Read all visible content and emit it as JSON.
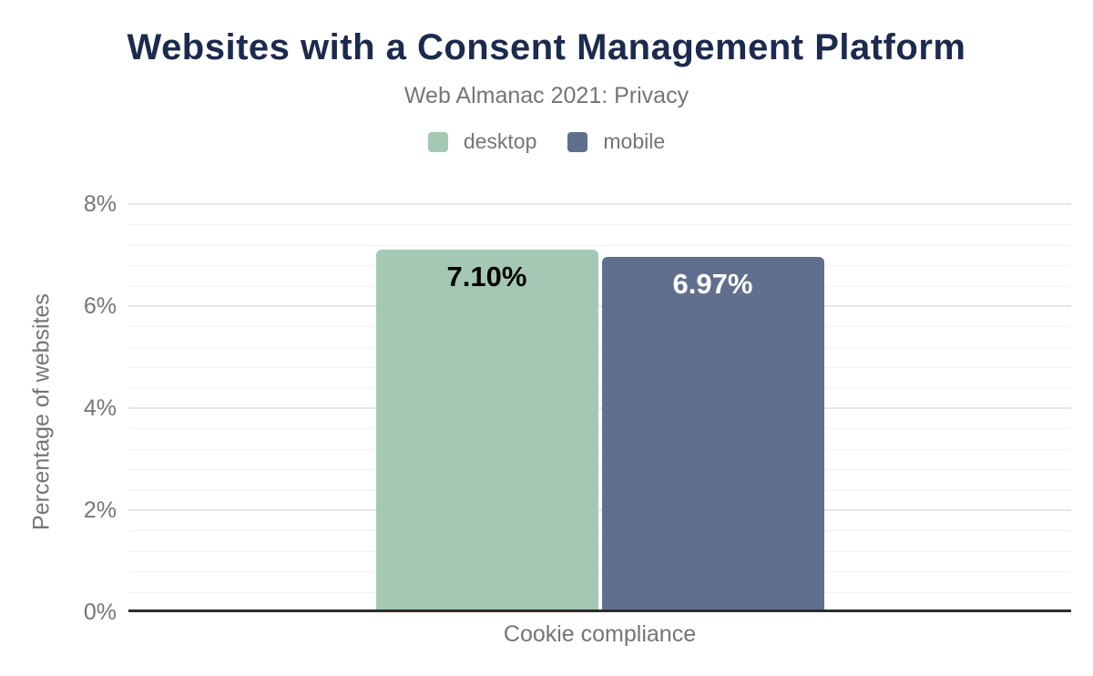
{
  "header": {
    "title": "Websites with a Consent Management Platform",
    "subtitle": "Web Almanac 2021: Privacy"
  },
  "chart_data": {
    "type": "bar",
    "title": "Websites with a Consent Management Platform",
    "subtitle": "Web Almanac 2021: Privacy",
    "categories": [
      "Cookie compliance"
    ],
    "series": [
      {
        "name": "desktop",
        "values": [
          7.1
        ],
        "data_labels": [
          "7.10%"
        ],
        "color": "#a5c8b5",
        "label_color": "#000000"
      },
      {
        "name": "mobile",
        "values": [
          6.97
        ],
        "data_labels": [
          "6.97%"
        ],
        "color": "#606f8e",
        "label_color": "#ffffff"
      }
    ],
    "xlabel": "Cookie compliance",
    "ylabel": "Percentage of websites",
    "ylim": [
      0,
      8
    ],
    "yticks": [
      {
        "value": 0,
        "label": "0%"
      },
      {
        "value": 2,
        "label": "2%"
      },
      {
        "value": 4,
        "label": "4%"
      },
      {
        "value": 6,
        "label": "6%"
      },
      {
        "value": 8,
        "label": "8%"
      }
    ],
    "minor_tick_interval": 0.4,
    "major_tick_interval": 2,
    "grid": true,
    "legend_position": "top"
  },
  "colors": {
    "title_text": "#1b2a4e",
    "muted_text": "#757575",
    "axis_line": "#2d2d2d",
    "major_gridline": "#e7e7e7",
    "minor_gridline": "#f2f2f2",
    "background": "#ffffff"
  }
}
